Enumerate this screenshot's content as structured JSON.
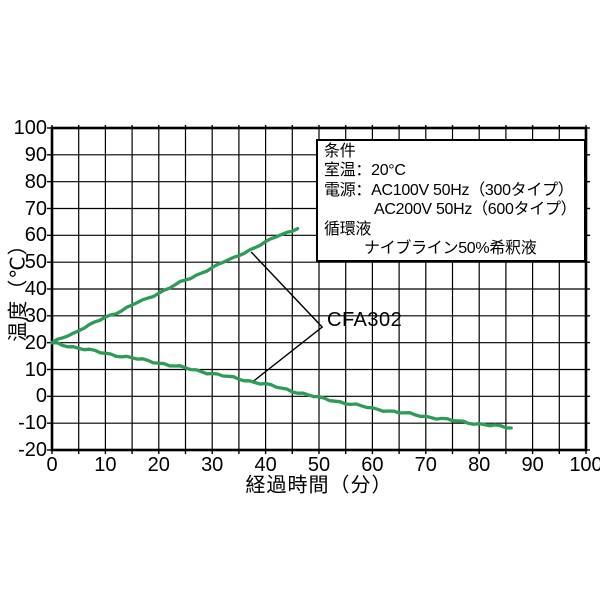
{
  "chart_data": {
    "type": "line",
    "title": "",
    "xlabel": "経過時間（分）",
    "ylabel": "温度（℃）",
    "xlim": [
      0,
      100
    ],
    "ylim": [
      -20,
      100
    ],
    "x_ticks": [
      0,
      10,
      20,
      30,
      40,
      50,
      60,
      70,
      80,
      90,
      100
    ],
    "y_ticks": [
      100,
      90,
      80,
      70,
      60,
      50,
      40,
      30,
      20,
      10,
      0,
      -10,
      -20
    ],
    "x_grid_step": 5,
    "y_grid_step": 10,
    "grid": true,
    "legend": "none",
    "line_color": "#2e9b57",
    "series": [
      {
        "name": "CFA302",
        "points": [
          [
            0,
            20
          ],
          [
            2,
            22
          ],
          [
            4,
            23.5
          ],
          [
            6,
            25.5
          ],
          [
            8,
            27.5
          ],
          [
            10,
            29.5
          ],
          [
            12,
            31
          ],
          [
            14,
            33
          ],
          [
            16,
            35
          ],
          [
            18,
            36.5
          ],
          [
            20,
            38.5
          ],
          [
            22,
            40.5
          ],
          [
            24,
            42.5
          ],
          [
            26,
            44
          ],
          [
            28,
            46
          ],
          [
            30,
            48
          ],
          [
            32,
            50
          ],
          [
            34,
            51.5
          ],
          [
            36,
            53.5
          ],
          [
            38,
            55.5
          ],
          [
            40,
            57.5
          ],
          [
            42,
            59.5
          ],
          [
            44,
            61
          ],
          [
            46,
            62.5
          ]
        ]
      },
      {
        "name": "CFA302",
        "points": [
          [
            0,
            20
          ],
          [
            5,
            18
          ],
          [
            10,
            16
          ],
          [
            15,
            14.3
          ],
          [
            20,
            12.5
          ],
          [
            25,
            10.5
          ],
          [
            30,
            8.5
          ],
          [
            35,
            6.5
          ],
          [
            40,
            4.5
          ],
          [
            45,
            2
          ],
          [
            48,
            0.5
          ],
          [
            50,
            -0.5
          ],
          [
            55,
            -2.5
          ],
          [
            60,
            -4.5
          ],
          [
            65,
            -6
          ],
          [
            70,
            -7.5
          ],
          [
            75,
            -9
          ],
          [
            80,
            -10.3
          ],
          [
            83,
            -11
          ],
          [
            86,
            -11.8
          ]
        ]
      }
    ],
    "annotation": {
      "label": "CFA302",
      "leader_data_coords": [
        [
          37.3,
          53.8
        ],
        [
          50.6,
          25.8
        ],
        [
          37.5,
          5.3
        ]
      ]
    }
  },
  "conditions_box": {
    "line1": "条件",
    "line2": "室温：20°C",
    "line3": "電源：AC100V 50Hz（300タイプ）",
    "line4": "AC200V 50Hz（600タイプ）",
    "line5": "循環液",
    "line6": "ナイブライン50%希釈液"
  }
}
